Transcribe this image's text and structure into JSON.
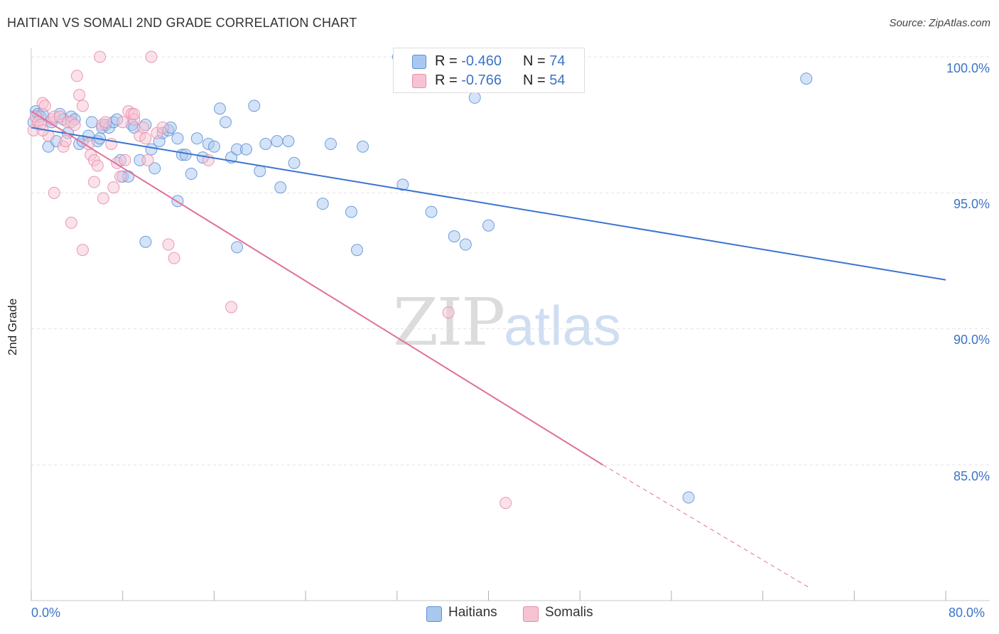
{
  "header": {
    "title": "HAITIAN VS SOMALI 2ND GRADE CORRELATION CHART",
    "source": "Source: ZipAtlas.com"
  },
  "watermark": {
    "zip": "ZIP",
    "atlas": "atlas"
  },
  "legend_top": {
    "rows": [
      {
        "r_label": "R =",
        "r_value": "-0.460",
        "n_label": "N =",
        "n_value": "74",
        "color": "#a9c8f0",
        "border": "#5b8fd6"
      },
      {
        "r_label": "R =",
        "r_value": "-0.766",
        "n_label": "N =",
        "n_value": "54",
        "color": "#f7c3d3",
        "border": "#e58aa8"
      }
    ]
  },
  "legend_bottom": {
    "items": [
      {
        "label": "Haitians",
        "color": "#a9c8f0",
        "border": "#5b8fd6"
      },
      {
        "label": "Somalis",
        "color": "#f7c3d3",
        "border": "#e58aa8"
      }
    ]
  },
  "chart_data": {
    "type": "scatter",
    "title": "HAITIAN VS SOMALI 2ND GRADE CORRELATION CHART",
    "xlabel": "",
    "ylabel": "2nd Grade",
    "xlim": [
      0,
      80
    ],
    "ylim": [
      80.5,
      100.4
    ],
    "x_tick_labels": [
      "0.0%",
      "80.0%"
    ],
    "y_ticks": [
      85,
      90,
      95,
      100
    ],
    "y_tick_labels": [
      "85.0%",
      "90.0%",
      "95.0%",
      "100.0%"
    ],
    "grid": true,
    "legend_position": "top-center",
    "series": [
      {
        "name": "Haitians",
        "color": "#5b8fd6",
        "fill": "#a9c8f0",
        "trend": {
          "x0": 0,
          "y0": 97.4,
          "x1": 80,
          "y1": 91.8
        },
        "points": [
          [
            0.2,
            97.6
          ],
          [
            0.4,
            98.0
          ],
          [
            0.6,
            97.9
          ],
          [
            0.8,
            97.8
          ],
          [
            1.0,
            97.9
          ],
          [
            1.5,
            96.7
          ],
          [
            1.8,
            97.6
          ],
          [
            2.2,
            96.9
          ],
          [
            2.5,
            97.9
          ],
          [
            2.8,
            97.7
          ],
          [
            3.2,
            97.2
          ],
          [
            3.5,
            97.8
          ],
          [
            3.8,
            97.7
          ],
          [
            4.2,
            96.8
          ],
          [
            4.5,
            96.9
          ],
          [
            5.0,
            97.1
          ],
          [
            5.3,
            97.6
          ],
          [
            5.8,
            96.9
          ],
          [
            6.2,
            97.4
          ],
          [
            6.5,
            97.5
          ],
          [
            6.8,
            97.4
          ],
          [
            7.2,
            97.6
          ],
          [
            7.5,
            97.7
          ],
          [
            7.8,
            96.2
          ],
          [
            8.0,
            95.6
          ],
          [
            8.5,
            95.6
          ],
          [
            8.8,
            97.5
          ],
          [
            9.0,
            97.4
          ],
          [
            9.5,
            96.2
          ],
          [
            10.0,
            97.5
          ],
          [
            10.5,
            96.6
          ],
          [
            10.8,
            95.9
          ],
          [
            11.2,
            96.9
          ],
          [
            11.5,
            97.2
          ],
          [
            12.0,
            97.3
          ],
          [
            12.2,
            97.4
          ],
          [
            12.8,
            97.0
          ],
          [
            13.2,
            96.4
          ],
          [
            13.5,
            96.4
          ],
          [
            14.0,
            95.7
          ],
          [
            14.5,
            97.0
          ],
          [
            15.0,
            96.3
          ],
          [
            15.5,
            96.8
          ],
          [
            16.0,
            96.7
          ],
          [
            16.5,
            98.1
          ],
          [
            17.0,
            97.6
          ],
          [
            17.5,
            96.3
          ],
          [
            18.0,
            96.6
          ],
          [
            18.8,
            96.6
          ],
          [
            19.5,
            98.2
          ],
          [
            20.0,
            95.8
          ],
          [
            20.5,
            96.8
          ],
          [
            21.5,
            96.9
          ],
          [
            22.5,
            96.9
          ],
          [
            23.0,
            96.1
          ],
          [
            26.2,
            96.8
          ],
          [
            29.0,
            96.7
          ],
          [
            32.5,
            95.3
          ],
          [
            25.5,
            94.6
          ],
          [
            28.0,
            94.3
          ],
          [
            35.0,
            94.3
          ],
          [
            37.0,
            93.4
          ],
          [
            38.0,
            93.1
          ],
          [
            40.0,
            93.8
          ],
          [
            28.5,
            92.9
          ],
          [
            18.0,
            93.0
          ],
          [
            10.0,
            93.2
          ],
          [
            12.8,
            94.7
          ],
          [
            21.8,
            95.2
          ],
          [
            38.8,
            98.5
          ],
          [
            67.8,
            99.2
          ],
          [
            32.1,
            100.0
          ],
          [
            57.5,
            83.8
          ],
          [
            6.0,
            97.0
          ]
        ]
      },
      {
        "name": "Somalis",
        "color": "#e58aa8",
        "fill": "#f7c3d3",
        "trend": {
          "x0": 0,
          "y0": 98.0,
          "x1": 50,
          "y1": 85.0,
          "dash_to_x": 68,
          "dash_to_y": 80.5
        },
        "points": [
          [
            0.2,
            97.3
          ],
          [
            0.4,
            97.8
          ],
          [
            0.6,
            97.6
          ],
          [
            0.8,
            97.5
          ],
          [
            1.0,
            98.3
          ],
          [
            1.2,
            98.2
          ],
          [
            1.5,
            97.1
          ],
          [
            1.8,
            97.7
          ],
          [
            2.0,
            97.8
          ],
          [
            2.5,
            97.8
          ],
          [
            2.8,
            96.7
          ],
          [
            3.0,
            96.9
          ],
          [
            3.2,
            97.6
          ],
          [
            3.5,
            97.6
          ],
          [
            3.8,
            97.5
          ],
          [
            4.0,
            99.3
          ],
          [
            4.2,
            98.6
          ],
          [
            4.5,
            98.2
          ],
          [
            5.0,
            96.8
          ],
          [
            5.2,
            96.4
          ],
          [
            5.5,
            96.2
          ],
          [
            5.8,
            96.0
          ],
          [
            6.2,
            97.5
          ],
          [
            6.5,
            97.6
          ],
          [
            7.0,
            96.8
          ],
          [
            7.2,
            95.2
          ],
          [
            7.5,
            96.1
          ],
          [
            7.8,
            95.6
          ],
          [
            8.0,
            97.6
          ],
          [
            8.2,
            96.2
          ],
          [
            8.5,
            98.0
          ],
          [
            8.8,
            97.9
          ],
          [
            9.0,
            97.7
          ],
          [
            9.5,
            97.1
          ],
          [
            9.8,
            97.4
          ],
          [
            10.0,
            97.0
          ],
          [
            10.2,
            96.2
          ],
          [
            11.0,
            97.2
          ],
          [
            11.5,
            97.4
          ],
          [
            12.0,
            93.1
          ],
          [
            12.5,
            92.6
          ],
          [
            15.5,
            96.2
          ],
          [
            17.5,
            90.8
          ],
          [
            36.5,
            90.6
          ],
          [
            41.5,
            83.6
          ],
          [
            6.0,
            100.0
          ],
          [
            10.5,
            100.0
          ],
          [
            2.0,
            95.0
          ],
          [
            3.5,
            93.9
          ],
          [
            4.5,
            92.9
          ],
          [
            5.5,
            95.4
          ],
          [
            6.3,
            94.8
          ],
          [
            9.0,
            97.9
          ],
          [
            1.0,
            97.3
          ]
        ]
      }
    ]
  }
}
